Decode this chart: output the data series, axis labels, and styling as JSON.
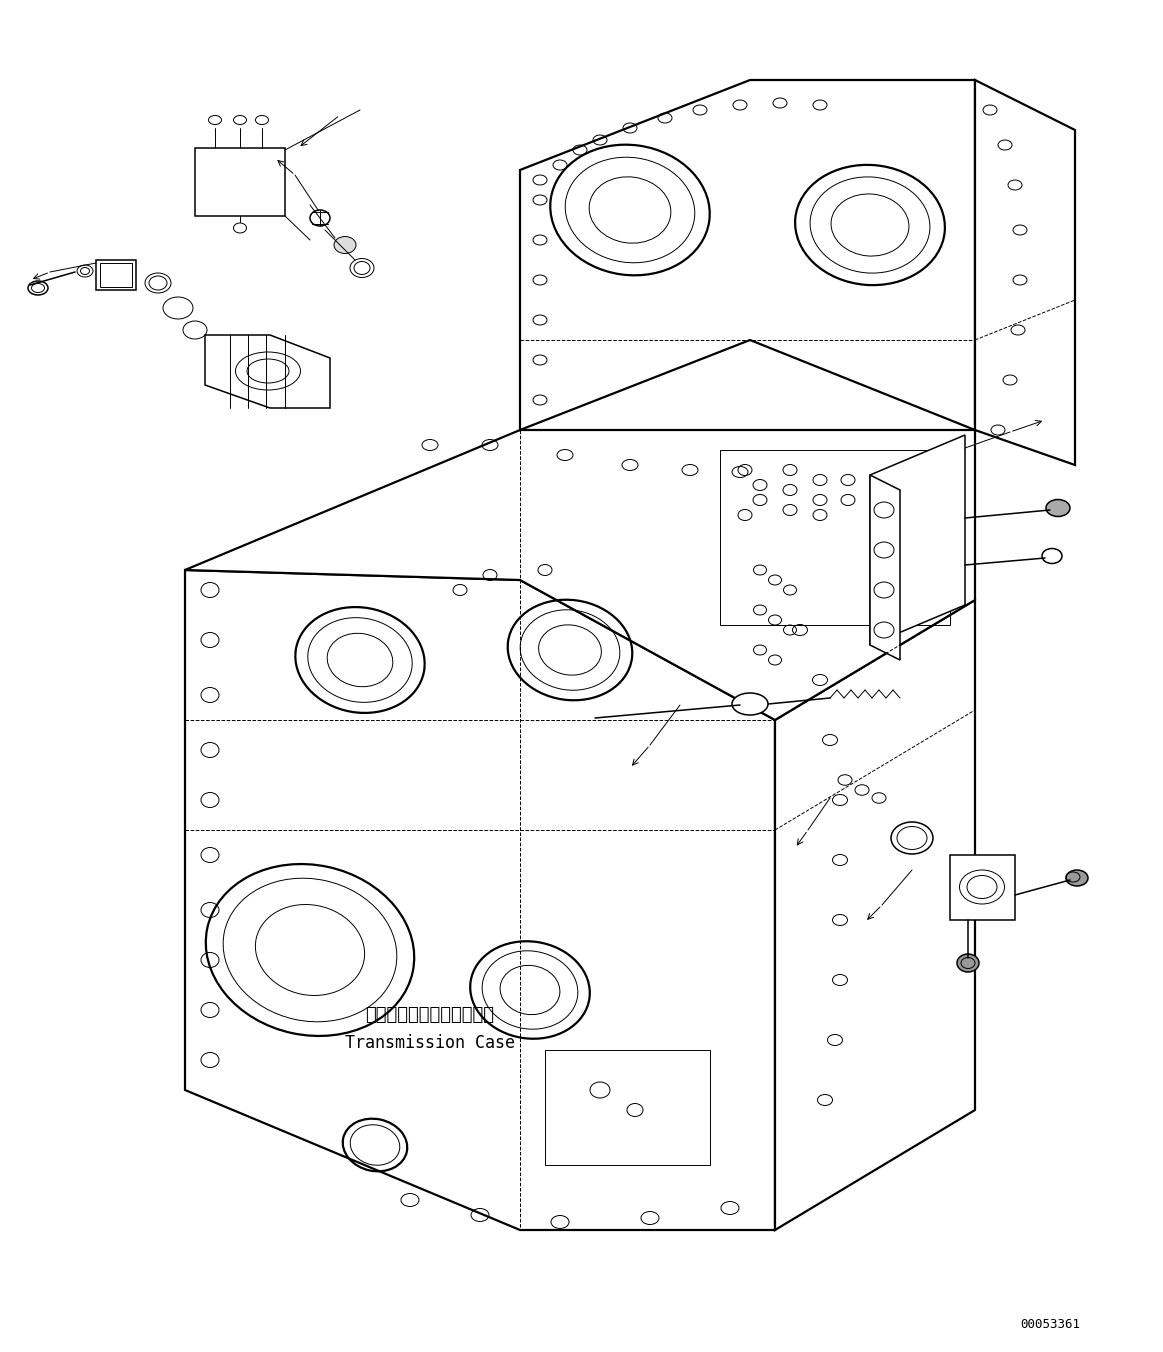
{
  "label_japanese": "トランスミッションケース",
  "label_english": "Transmission Case",
  "part_number": "00053361",
  "bg_color": "#ffffff",
  "line_color": "#000000",
  "fig_width": 11.63,
  "fig_height": 13.52,
  "lw_thick": 1.6,
  "lw_main": 1.1,
  "lw_thin": 0.7
}
